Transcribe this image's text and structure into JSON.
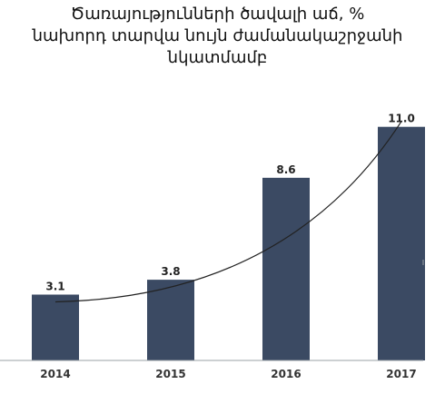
{
  "title_lines": [
    "Ծառայությունների ծավալի աճ, %",
    "նախորդ տարվա նույն ժամանակաշրջանի",
    "նկատմամբ"
  ],
  "chart_data": {
    "type": "bar",
    "title": "Ծառայությունների ծավալի աճ, % նախորդ տարվա նույն ժամանակաշրջանի նկատմամբ",
    "categories": [
      "2014",
      "2015",
      "2016",
      "2017"
    ],
    "values": [
      3.1,
      3.8,
      8.6,
      11.0
    ],
    "value_labels": [
      "3.1",
      "3.8",
      "8.6",
      "11.0"
    ],
    "trendline": true,
    "bar_color": "#3b4a63",
    "trend_color": "#222222",
    "grid": false,
    "legend": "none",
    "ylim": [
      0,
      11.5
    ]
  }
}
